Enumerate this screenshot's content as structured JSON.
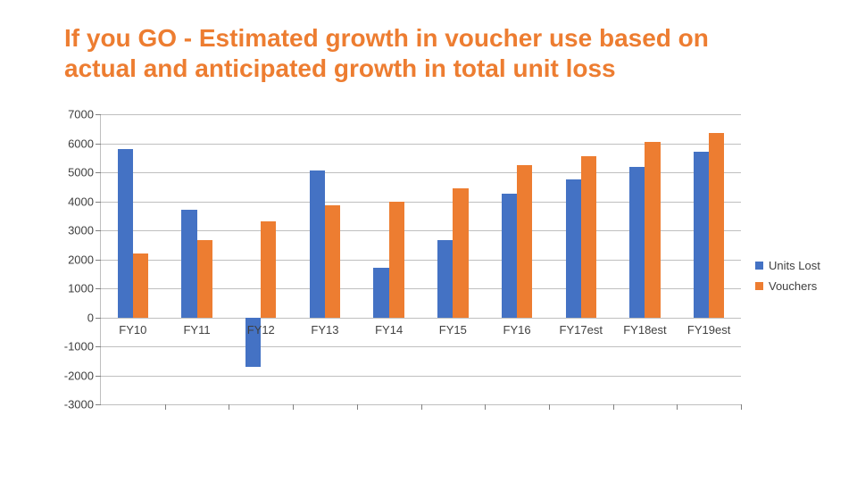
{
  "title": {
    "text": "If you GO - Estimated growth in voucher use based on actual and anticipated growth in total unit loss",
    "color": "#ed7d31",
    "fontsize": 28
  },
  "chart": {
    "type": "bar",
    "categories": [
      "FY10",
      "FY11",
      "FY12",
      "FY13",
      "FY14",
      "FY15",
      "FY16",
      "FY17est",
      "FY18est",
      "FY19est"
    ],
    "series": [
      {
        "name": "Units Lost",
        "color": "#4472c4",
        "values": [
          5800,
          3700,
          -1700,
          5050,
          1700,
          2650,
          4250,
          4750,
          5200,
          5700
        ]
      },
      {
        "name": "Vouchers",
        "color": "#ed7d31",
        "values": [
          2200,
          2650,
          3300,
          3850,
          4000,
          4450,
          5250,
          5550,
          6050,
          6350
        ]
      }
    ],
    "ylim": [
      -3000,
      7000
    ],
    "ytick_step": 1000,
    "grid_color": "#bfbfbf",
    "axis_color": "#bfbfbf",
    "tick_color": "#808080",
    "label_color": "#404040",
    "label_fontsize": 13,
    "bar_group_width": 0.48,
    "background": "#ffffff"
  },
  "legend": {
    "items": [
      {
        "label": "Units Lost",
        "color": "#4472c4"
      },
      {
        "label": "Vouchers",
        "color": "#ed7d31"
      }
    ],
    "label_color": "#404040"
  }
}
